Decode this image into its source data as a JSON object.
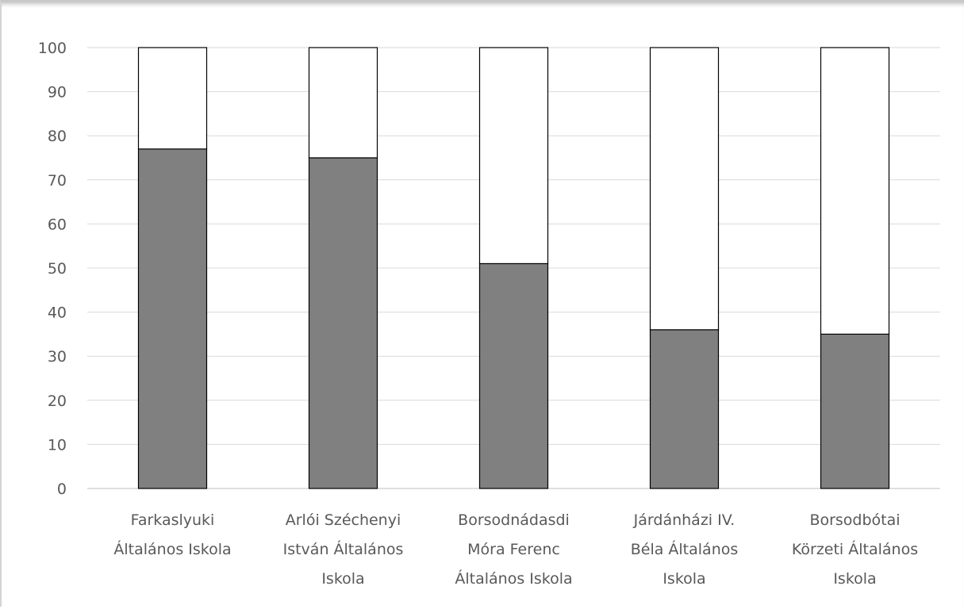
{
  "chart_data": {
    "type": "bar",
    "stacked": true,
    "title": "",
    "xlabel": "",
    "ylabel": "",
    "ylim": [
      0,
      100
    ],
    "yticks": [
      0,
      10,
      20,
      30,
      40,
      50,
      60,
      70,
      80,
      90,
      100
    ],
    "grid": true,
    "legend": "none",
    "categories": [
      [
        "Farkaslyuki",
        "Általános Iskola"
      ],
      [
        "Arlói Széchenyi",
        "István Általános",
        "Iskola"
      ],
      [
        "Borsodnádasdi",
        "Móra Ferenc",
        "Általános Iskola"
      ],
      [
        "Járdánházi IV.",
        "Béla Általános",
        "Iskola"
      ],
      [
        "Borsodbótai",
        "Körzeti Általános",
        "Iskola"
      ]
    ],
    "series": [
      {
        "values": [
          77,
          75,
          51,
          36,
          35
        ],
        "color": "#808080"
      },
      {
        "values": [
          23,
          25,
          49,
          64,
          65
        ],
        "color": "#ffffff"
      }
    ]
  }
}
